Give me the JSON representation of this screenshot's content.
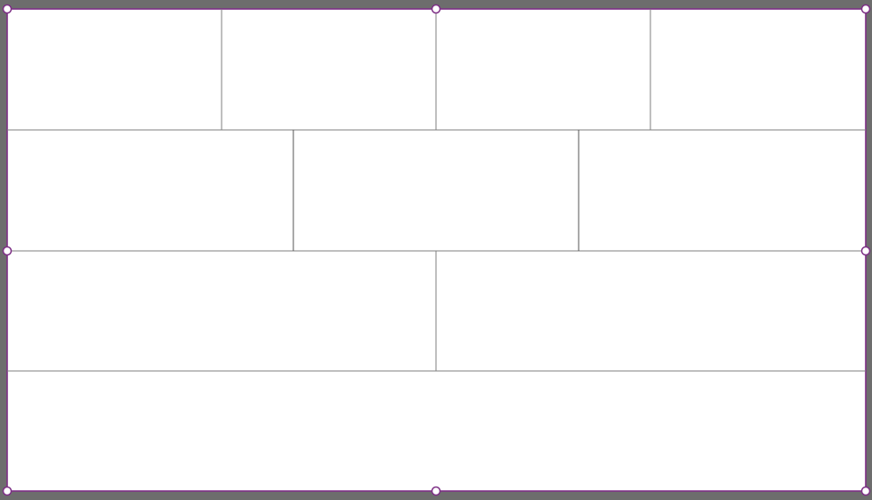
{
  "canvas": {
    "background_color": "#6d6d6d",
    "frame_fill_color": "#ffffff",
    "selection_color": "#7d2f86",
    "divider_color": "#7f7f7f"
  },
  "grid": {
    "rows": [
      4,
      3,
      2,
      1
    ]
  },
  "selection": {
    "handles": [
      "top-left",
      "top-center",
      "top-right",
      "middle-left",
      "middle-right",
      "bottom-left",
      "bottom-center",
      "bottom-right"
    ]
  }
}
